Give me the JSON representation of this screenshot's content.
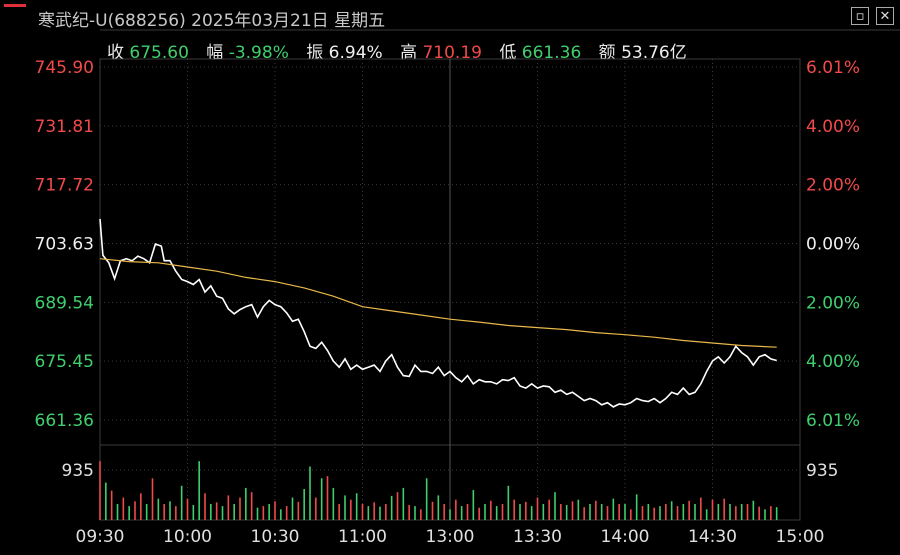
{
  "window": {
    "title": "寒武纪-U(688256) 2025年03月21日 星期五",
    "restore_icon": "restore-icon",
    "close_icon": "close-icon"
  },
  "stats": [
    {
      "label": "收",
      "value": "675.60",
      "color": "green"
    },
    {
      "label": "幅",
      "value": "-3.98%",
      "color": "green"
    },
    {
      "label": "振",
      "value": "6.94%",
      "color": "white"
    },
    {
      "label": "高",
      "value": "710.19",
      "color": "red"
    },
    {
      "label": "低",
      "value": "661.36",
      "color": "green"
    },
    {
      "label": "额",
      "value": "53.76亿",
      "color": "white"
    }
  ],
  "chart_data": {
    "type": "line",
    "title": "",
    "prev_close": 703.63,
    "price_axis": {
      "ticks": [
        "745.90",
        "731.81",
        "717.72",
        "703.63",
        "689.54",
        "675.45",
        "661.36"
      ],
      "values": [
        745.9,
        731.81,
        717.72,
        703.63,
        689.54,
        675.45,
        661.36
      ],
      "range": [
        661.36,
        745.9
      ]
    },
    "pct_axis": {
      "ticks": [
        "6.01%",
        "4.00%",
        "2.00%",
        "0.00%",
        "2.00%",
        "4.00%",
        "6.01%"
      ],
      "colors": [
        "red",
        "red",
        "red",
        "white",
        "green",
        "green",
        "green"
      ]
    },
    "volume_axis": {
      "label_left": "935",
      "label_right": "935"
    },
    "time_axis": {
      "ticks": [
        "09:30",
        "10:00",
        "10:30",
        "11:00",
        "13:00",
        "13:30",
        "14:00",
        "14:30",
        "15:00"
      ],
      "minutes": [
        0,
        30,
        60,
        90,
        120,
        150,
        180,
        210,
        240
      ]
    },
    "series": [
      {
        "line_color": "#ffffff",
        "x": [
          0,
          1,
          3,
          5,
          7,
          9,
          11,
          13,
          15,
          17,
          19,
          21,
          22,
          24,
          26,
          28,
          30,
          32,
          34,
          36,
          38,
          40,
          42,
          44,
          46,
          48,
          50,
          52,
          54,
          56,
          58,
          60,
          62,
          64,
          66,
          68,
          70,
          72,
          74,
          76,
          78,
          80,
          82,
          84,
          86,
          88,
          90,
          92,
          94,
          96,
          98,
          100,
          102,
          104,
          106,
          108,
          110,
          112,
          114,
          116,
          118,
          120,
          122,
          124,
          126,
          128,
          130,
          132,
          134,
          136,
          138,
          140,
          142,
          144,
          146,
          148,
          150,
          152,
          154,
          156,
          158,
          160,
          162,
          164,
          166,
          168,
          170,
          172,
          174,
          176,
          178,
          180,
          182,
          184,
          186,
          188,
          190,
          192,
          194,
          196,
          198,
          200,
          202,
          204,
          206,
          208,
          210,
          212,
          214,
          216,
          218,
          220,
          222,
          224,
          226,
          228,
          230,
          232
        ],
        "values": [
          709.5,
          700.8,
          699.0,
          695.2,
          699.5,
          700.0,
          699.5,
          700.6,
          700.0,
          699.0,
          703.5,
          703.0,
          699.5,
          699.5,
          697.0,
          695.0,
          694.5,
          693.8,
          695.0,
          692.0,
          693.5,
          691.0,
          690.5,
          688.0,
          686.8,
          687.8,
          688.5,
          689.0,
          686.0,
          688.5,
          690.0,
          689.0,
          688.5,
          687.0,
          685.0,
          685.5,
          682.5,
          679.0,
          678.5,
          680.0,
          678.0,
          675.5,
          674.0,
          676.0,
          673.5,
          674.5,
          673.5,
          674.0,
          674.5,
          673.0,
          675.5,
          677.0,
          674.0,
          672.0,
          671.8,
          674.5,
          673.0,
          673.0,
          672.5,
          674.0,
          672.0,
          673.0,
          671.5,
          670.5,
          672.0,
          670.0,
          671.0,
          670.5,
          670.5,
          670.0,
          671.0,
          670.8,
          671.5,
          669.5,
          669.0,
          670.0,
          669.0,
          669.5,
          669.3,
          668.0,
          668.5,
          667.5,
          668.0,
          667.0,
          666.0,
          666.5,
          666.0,
          665.0,
          665.5,
          664.5,
          665.2,
          665.0,
          665.5,
          666.5,
          666.0,
          665.8,
          666.5,
          665.5,
          666.5,
          668.0,
          667.5,
          669.0,
          667.5,
          668.0,
          670.0,
          673.0,
          675.5,
          676.5,
          675.0,
          676.5,
          679.0,
          677.5,
          676.5,
          674.5,
          676.5,
          677.0,
          676.0,
          675.6
        ]
      },
      {
        "line_color": "#e8b84a",
        "x": [
          0,
          10,
          20,
          30,
          40,
          50,
          60,
          70,
          80,
          90,
          100,
          110,
          120,
          130,
          140,
          150,
          160,
          170,
          180,
          190,
          200,
          210,
          220,
          232
        ],
        "values": [
          700.0,
          699.3,
          699.0,
          698.0,
          697.0,
          695.5,
          694.5,
          693.0,
          691.0,
          688.5,
          687.5,
          686.5,
          685.5,
          684.8,
          684.0,
          683.5,
          683.0,
          682.3,
          681.8,
          681.2,
          680.4,
          679.8,
          679.2,
          678.8
        ]
      }
    ],
    "volume": {
      "max_label": 935,
      "x": [
        0,
        2,
        4,
        6,
        8,
        10,
        12,
        14,
        16,
        18,
        20,
        22,
        24,
        26,
        28,
        30,
        32,
        34,
        36,
        38,
        40,
        42,
        44,
        46,
        48,
        50,
        52,
        54,
        56,
        58,
        60,
        62,
        64,
        66,
        68,
        70,
        72,
        74,
        76,
        78,
        80,
        82,
        84,
        86,
        88,
        90,
        92,
        94,
        96,
        98,
        100,
        102,
        104,
        106,
        108,
        110,
        112,
        114,
        116,
        118,
        120,
        122,
        124,
        126,
        128,
        130,
        132,
        134,
        136,
        138,
        140,
        142,
        144,
        146,
        148,
        150,
        152,
        154,
        156,
        158,
        160,
        162,
        164,
        166,
        168,
        170,
        172,
        174,
        176,
        178,
        180,
        182,
        184,
        186,
        188,
        190,
        192,
        194,
        196,
        198,
        200,
        202,
        204,
        206,
        208,
        210,
        212,
        214,
        216,
        218,
        220,
        222,
        224,
        226,
        228,
        230,
        232
      ],
      "values": [
        1100,
        700,
        550,
        300,
        420,
        260,
        350,
        500,
        300,
        780,
        400,
        300,
        350,
        260,
        640,
        400,
        280,
        1100,
        500,
        300,
        330,
        260,
        460,
        300,
        420,
        600,
        520,
        230,
        260,
        300,
        350,
        200,
        260,
        420,
        340,
        580,
        1000,
        420,
        780,
        820,
        600,
        300,
        460,
        380,
        500,
        300,
        260,
        330,
        250,
        300,
        450,
        520,
        600,
        280,
        260,
        200,
        780,
        340,
        460,
        300,
        200,
        380,
        260,
        300,
        560,
        230,
        300,
        360,
        260,
        300,
        640,
        380,
        300,
        340,
        260,
        420,
        300,
        380,
        520,
        300,
        280,
        350,
        380,
        240,
        300,
        360,
        300,
        260,
        400,
        300,
        300,
        200,
        480,
        260,
        300,
        230,
        260,
        300,
        350,
        260,
        300,
        360,
        300,
        420,
        200,
        380,
        300,
        400,
        300,
        260,
        300,
        300,
        360,
        250,
        200,
        260,
        240
      ],
      "colors": [
        "red",
        "green",
        "red",
        "green",
        "red",
        "green",
        "red",
        "red",
        "green",
        "red",
        "green",
        "red",
        "green",
        "red",
        "green",
        "red",
        "green",
        "green",
        "red",
        "green",
        "red",
        "green",
        "red",
        "green",
        "red",
        "green",
        "red",
        "green",
        "red",
        "green",
        "red",
        "green",
        "red",
        "green",
        "red",
        "green",
        "green",
        "red",
        "green",
        "red",
        "green",
        "red",
        "green",
        "red",
        "green",
        "red",
        "green",
        "red",
        "green",
        "red",
        "green",
        "red",
        "green",
        "red",
        "green",
        "red",
        "green",
        "red",
        "green",
        "red",
        "green",
        "red",
        "green",
        "red",
        "green",
        "red",
        "green",
        "red",
        "green",
        "red",
        "green",
        "red",
        "green",
        "red",
        "green",
        "red",
        "green",
        "red",
        "green",
        "red",
        "green",
        "red",
        "green",
        "red",
        "green",
        "red",
        "green",
        "red",
        "green",
        "red",
        "green",
        "red",
        "green",
        "red",
        "green",
        "red",
        "green",
        "red",
        "green",
        "red",
        "green",
        "red",
        "green",
        "red",
        "green",
        "red",
        "green",
        "red",
        "green",
        "red",
        "green",
        "red",
        "green",
        "red",
        "green",
        "red",
        "green"
      ]
    },
    "colors": {
      "up": "#f04a4a",
      "down": "#3fcf6f",
      "flat": "#f0f0f0",
      "grid": "#3a3a3a"
    }
  }
}
